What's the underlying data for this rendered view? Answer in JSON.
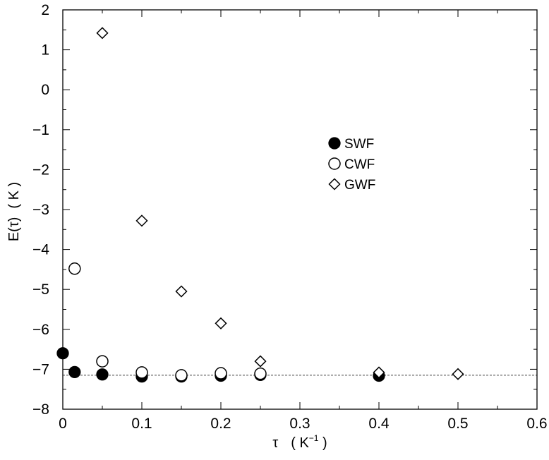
{
  "chart_data": {
    "type": "scatter",
    "xlabel": "τ",
    "xunit_base": "K",
    "xunit_exp": "−1",
    "ylabel": "E(τ)",
    "yunit": "K",
    "xlim": [
      0,
      0.6
    ],
    "ylim": [
      -8,
      2
    ],
    "xticks": [
      0,
      0.1,
      0.2,
      0.3,
      0.4,
      0.5,
      0.6
    ],
    "xtick_labels": [
      "0",
      "0.1",
      "0.2",
      "0.3",
      "0.4",
      "0.5",
      "0.6"
    ],
    "yticks": [
      2,
      1,
      0,
      -1,
      -2,
      -3,
      -4,
      -5,
      -6,
      -7,
      -8
    ],
    "ytick_labels": [
      "2",
      "1",
      "0",
      "−1",
      "−2",
      "−3",
      "−4",
      "−5",
      "−6",
      "−7",
      "−8"
    ],
    "reference_line": -7.15,
    "legend_position": "center-right",
    "grid": false,
    "series": [
      {
        "name": "SWF",
        "marker": "circle-filled",
        "color": "#000000",
        "points": [
          [
            0,
            -6.6
          ],
          [
            0.015,
            -7.07
          ],
          [
            0.05,
            -7.13
          ],
          [
            0.1,
            -7.18
          ],
          [
            0.15,
            -7.18
          ],
          [
            0.2,
            -7.16
          ],
          [
            0.25,
            -7.14
          ],
          [
            0.4,
            -7.16
          ]
        ]
      },
      {
        "name": "CWF",
        "marker": "circle-open",
        "color": "#000000",
        "points": [
          [
            0.015,
            -4.48
          ],
          [
            0.05,
            -6.8
          ],
          [
            0.1,
            -7.08
          ],
          [
            0.15,
            -7.15
          ],
          [
            0.2,
            -7.1
          ],
          [
            0.25,
            -7.11
          ]
        ]
      },
      {
        "name": "GWF",
        "marker": "diamond-open",
        "color": "#000000",
        "points": [
          [
            0.05,
            1.42
          ],
          [
            0.1,
            -3.28
          ],
          [
            0.15,
            -5.05
          ],
          [
            0.2,
            -5.85
          ],
          [
            0.25,
            -6.8
          ],
          [
            0.4,
            -7.08
          ],
          [
            0.5,
            -7.12
          ]
        ]
      }
    ]
  }
}
